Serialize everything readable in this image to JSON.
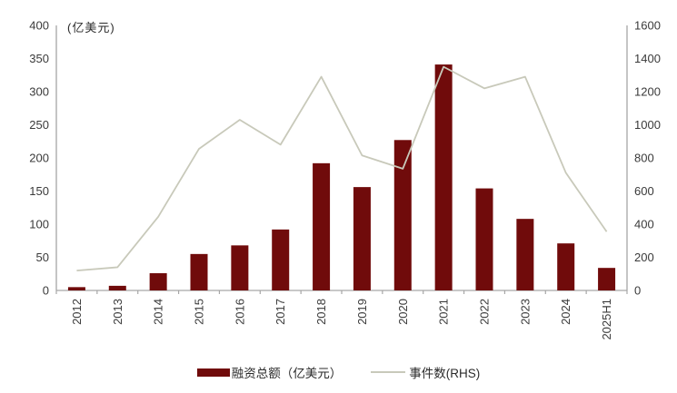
{
  "chart_data": {
    "type": "bar+line",
    "title": "",
    "unit_label_left": "(亿美元)",
    "grid": false,
    "legend_position": "bottom-center",
    "categories": [
      "2012",
      "2013",
      "2014",
      "2015",
      "2016",
      "2017",
      "2018",
      "2019",
      "2020",
      "2021",
      "2022",
      "2023",
      "2024",
      "2025H1"
    ],
    "series": [
      {
        "name": "融资总额（亿美元）",
        "type": "bar",
        "axis": "left",
        "color": "#700b0b",
        "values": [
          5,
          7,
          26,
          55,
          68,
          92,
          192,
          156,
          227,
          341,
          154,
          108,
          71,
          34
        ]
      },
      {
        "name": "事件数(RHS)",
        "type": "line",
        "axis": "right",
        "color": "#c8c9ba",
        "values": [
          120,
          140,
          445,
          855,
          1030,
          880,
          1290,
          815,
          735,
          1350,
          1220,
          1290,
          710,
          355
        ]
      }
    ],
    "axes": {
      "left": {
        "min": 0,
        "max": 400,
        "step": 50,
        "tick_labels": [
          "0",
          "50",
          "100",
          "150",
          "200",
          "250",
          "300",
          "350",
          "400"
        ]
      },
      "right": {
        "min": 0,
        "max": 1600,
        "step": 200,
        "tick_labels": [
          "0",
          "200",
          "400",
          "600",
          "800",
          "1000",
          "1200",
          "1400",
          "1600"
        ]
      }
    },
    "axis_line_color": "#a6a6a6",
    "text_color": "#3a3a3a"
  }
}
